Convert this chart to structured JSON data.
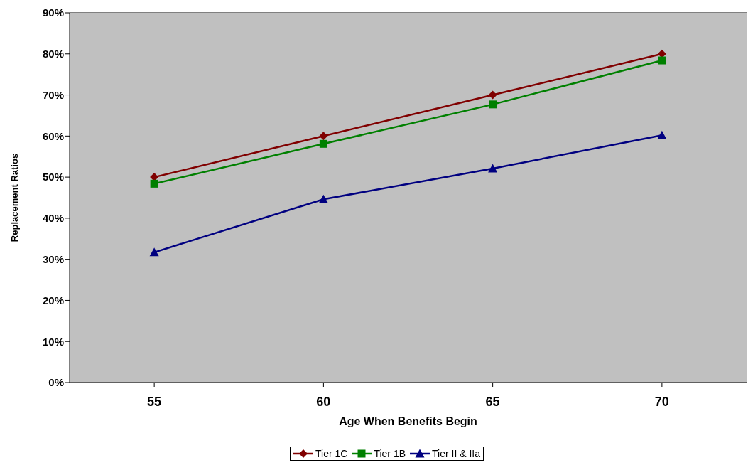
{
  "chart_data": {
    "type": "line",
    "xlabel": "Age When Benefits Begin",
    "ylabel": "Replacement Ratios",
    "categories": [
      "55",
      "60",
      "65",
      "70"
    ],
    "series": [
      {
        "name": "Tier 1C",
        "color": "#800000",
        "marker": "diamond",
        "values": [
          50,
          60,
          70,
          80
        ]
      },
      {
        "name": "Tier 1B",
        "color": "#008000",
        "marker": "square",
        "values": [
          48.4,
          58.1,
          67.7,
          78.4
        ]
      },
      {
        "name": "Tier II & IIa",
        "color": "#000080",
        "marker": "triangle",
        "values": [
          31.7,
          44.6,
          52.1,
          60.2
        ]
      }
    ],
    "ylim": [
      0,
      90
    ],
    "yticks": [
      {
        "value": 0,
        "label": "0%"
      },
      {
        "value": 10,
        "label": "10%"
      },
      {
        "value": 20,
        "label": "20%"
      },
      {
        "value": 30,
        "label": "30%"
      },
      {
        "value": 40,
        "label": "40%"
      },
      {
        "value": 50,
        "label": "50%"
      },
      {
        "value": 60,
        "label": "60%"
      },
      {
        "value": 70,
        "label": "70%"
      },
      {
        "value": 80,
        "label": "80%"
      },
      {
        "value": 90,
        "label": "90%"
      }
    ],
    "grid": "y",
    "legend": "bottom",
    "line_style": "solid"
  }
}
